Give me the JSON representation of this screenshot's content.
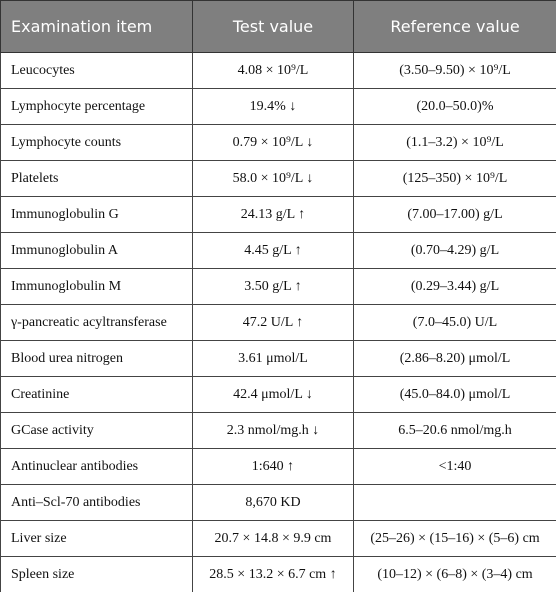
{
  "table": {
    "header": [
      "Examination item",
      "Test value",
      "Reference value"
    ],
    "rows": [
      [
        "Leucocytes",
        "4.08 × 10⁹/L",
        "(3.50–9.50) × 10⁹/L"
      ],
      [
        "Lymphocyte percentage",
        "19.4% ↓",
        "(20.0–50.0)%"
      ],
      [
        "Lymphocyte counts",
        "0.79 × 10⁹/L ↓",
        "(1.1–3.2) × 10⁹/L"
      ],
      [
        "Platelets",
        "58.0 × 10⁹/L ↓",
        "(125–350) × 10⁹/L"
      ],
      [
        "Immunoglobulin G",
        "24.13 g/L ↑",
        "(7.00–17.00) g/L"
      ],
      [
        "Immunoglobulin A",
        "4.45 g/L ↑",
        "(0.70–4.29) g/L"
      ],
      [
        "Immunoglobulin M",
        "3.50 g/L ↑",
        "(0.29–3.44) g/L"
      ],
      [
        "γ-pancreatic acyltransferase",
        "47.2 U/L ↑",
        "(7.0–45.0) U/L"
      ],
      [
        "Blood urea nitrogen",
        "3.61 μmol/L",
        "(2.86–8.20) μmol/L"
      ],
      [
        "Creatinine",
        "42.4 μmol/L ↓",
        "(45.0–84.0) μmol/L"
      ],
      [
        "GCase activity",
        "2.3 nmol/mg.h ↓",
        "6.5–20.6 nmol/mg.h"
      ],
      [
        "Antinuclear antibodies",
        "1:640 ↑",
        "<1:40"
      ],
      [
        "Anti–Scl-70 antibodies",
        "8,670 KD"
      ],
      [
        "Liver size",
        "20.7 × 14.8 × 9.9 cm",
        "(25–26) × (15–16) × (5–6) cm"
      ],
      [
        "Spleen size",
        "28.5 × 13.2 × 6.7 cm ↑",
        "(10–12) × (6–8) × (3–4) cm"
      ]
    ]
  }
}
